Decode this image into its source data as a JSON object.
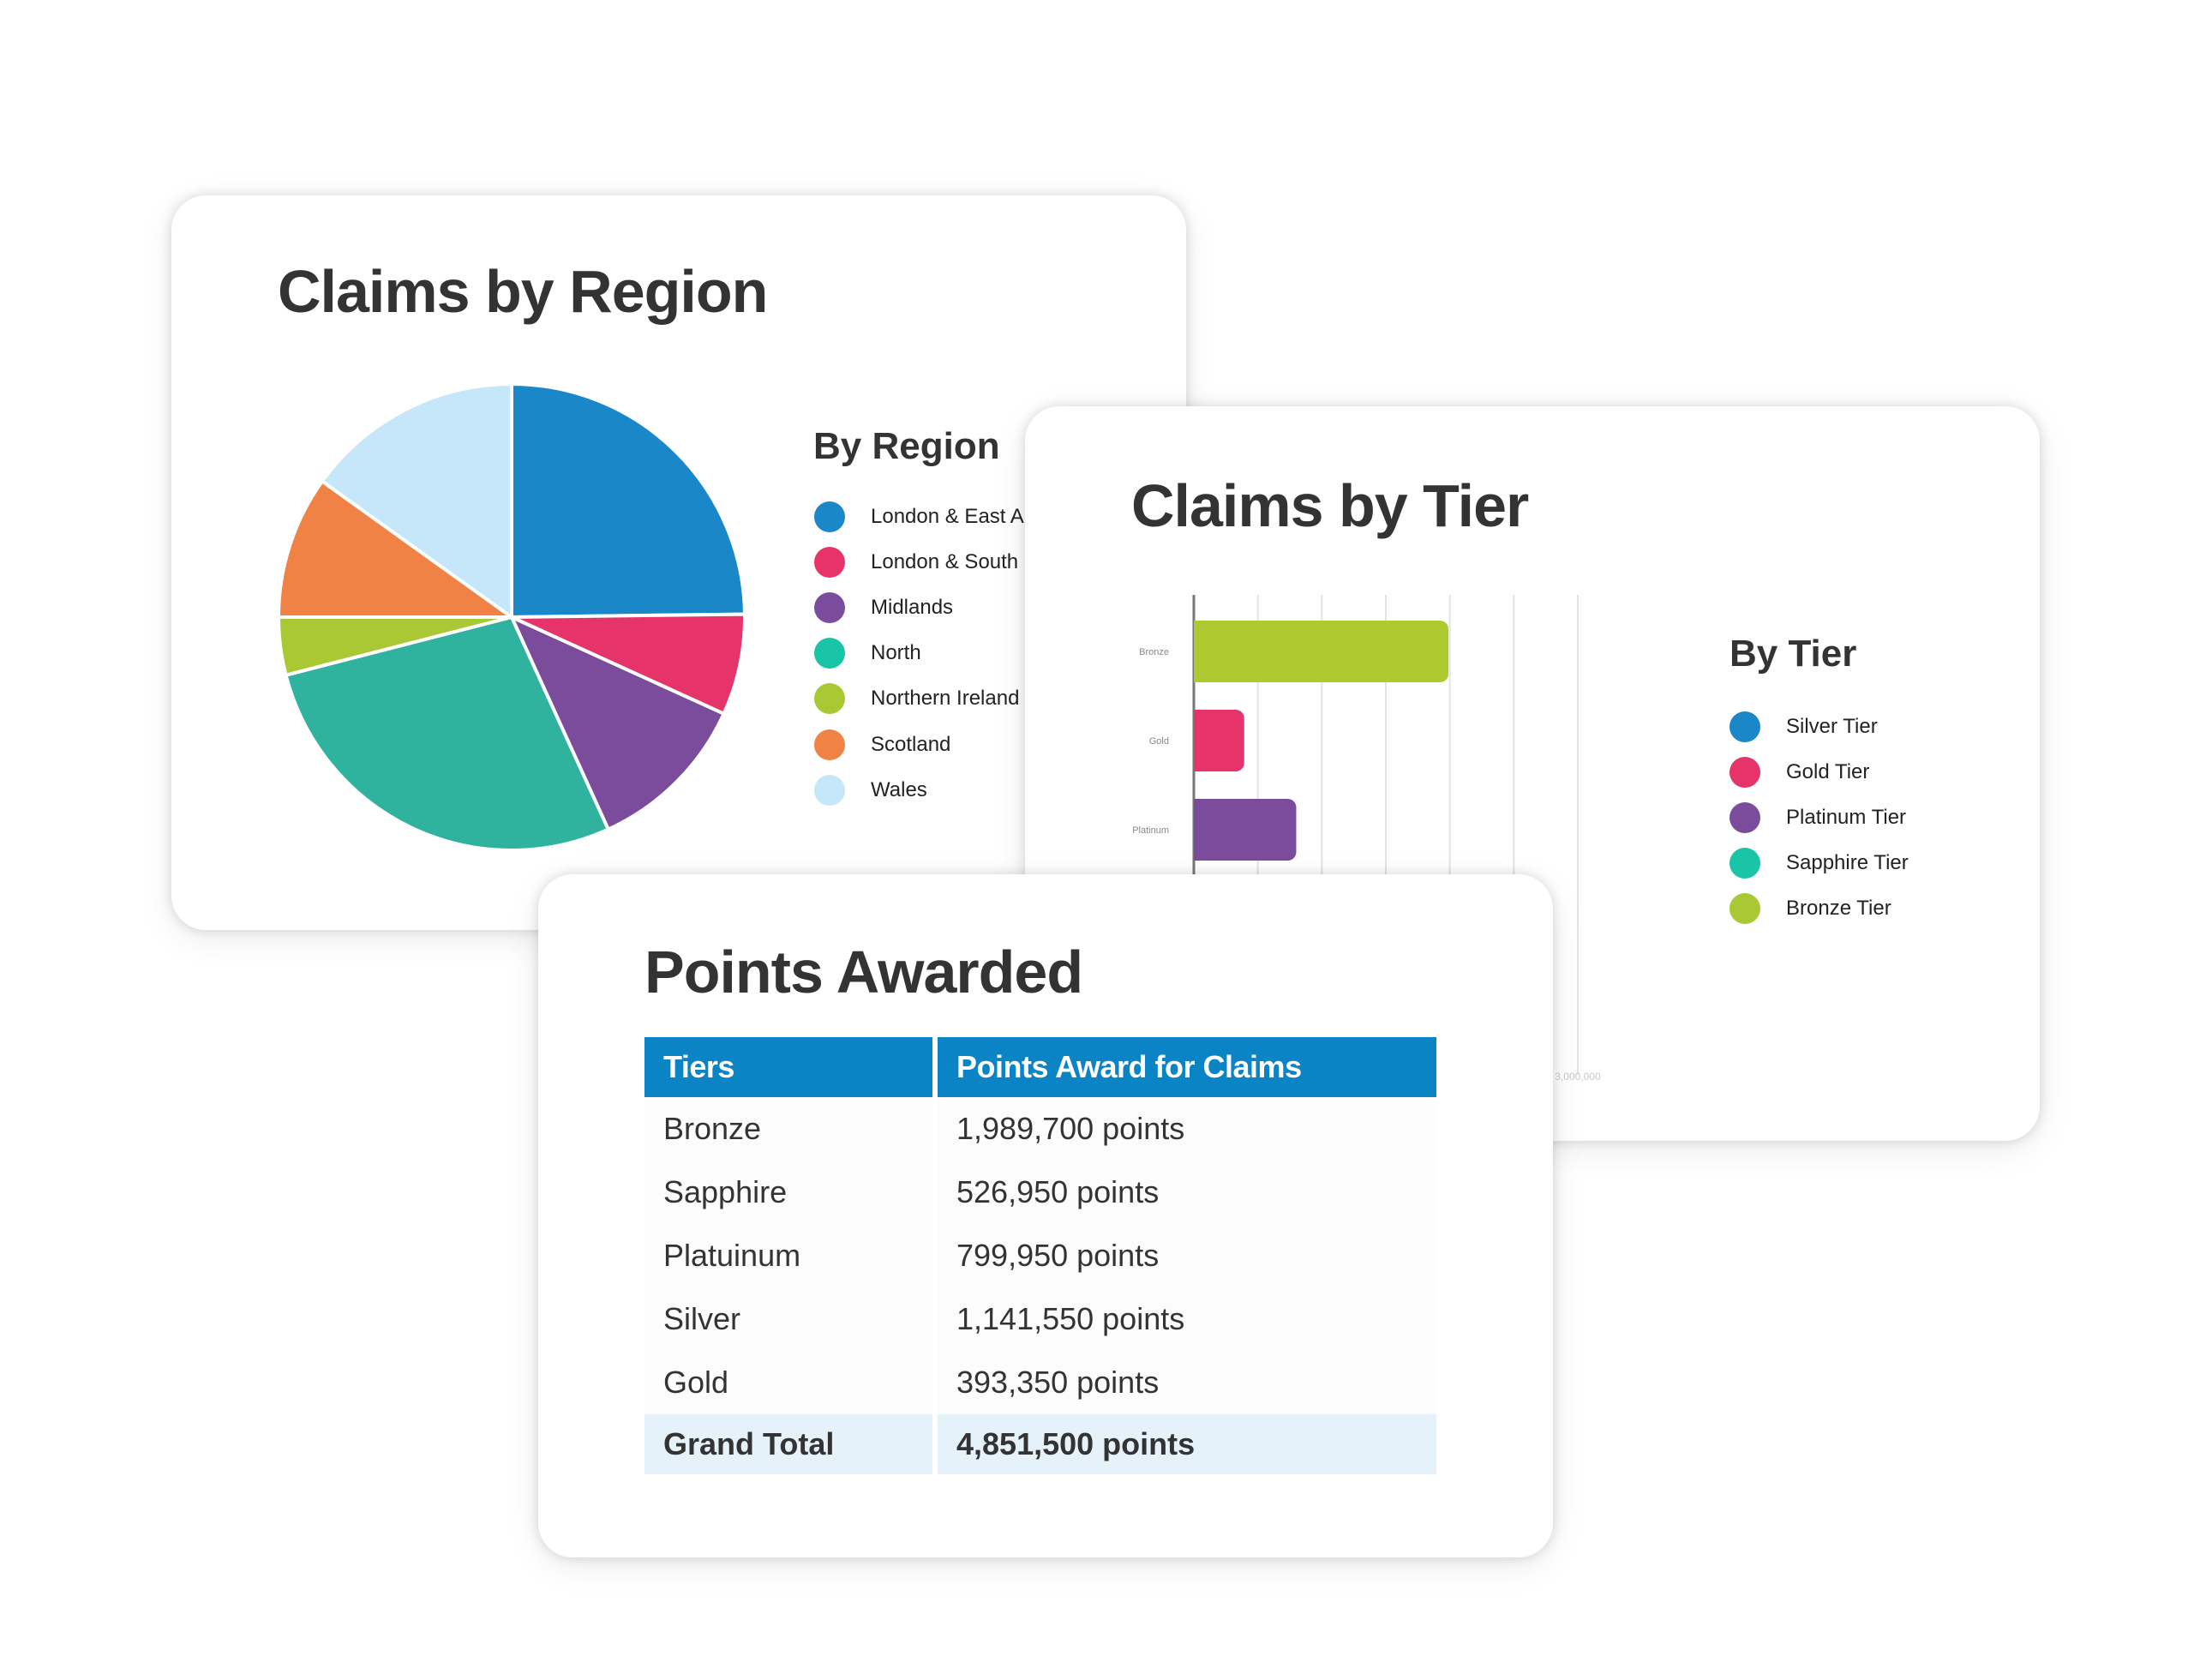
{
  "chart_data": [
    {
      "type": "pie",
      "title": "Claims by Region",
      "legend_title": "By Region",
      "legend_placement": "right",
      "slices": [
        {
          "label": "London & East A",
          "value": 24.8,
          "color": "#1a87c8"
        },
        {
          "label": "London & South",
          "value": 7.0,
          "color": "#e63369"
        },
        {
          "label": "Midlands",
          "value": 11.4,
          "color": "#7b4c9c"
        },
        {
          "label": "North",
          "value": 27.8,
          "color": "#2fb39e"
        },
        {
          "label": "Northern Ireland",
          "value": 4.0,
          "color": "#a9c833"
        },
        {
          "label": "Scotland",
          "value": 9.9,
          "color": "#f08245"
        },
        {
          "label": "Wales",
          "value": 15.1,
          "color": "#c5e7f9"
        }
      ],
      "legend_items": [
        {
          "label": "London & East A",
          "color": "#1a87c8"
        },
        {
          "label": "London & South",
          "color": "#e63369"
        },
        {
          "label": "Midlands",
          "color": "#7b4c9c"
        },
        {
          "label": "North",
          "color": "#19c4a7"
        },
        {
          "label": "Northern Ireland",
          "color": "#a9c833"
        },
        {
          "label": "Scotland",
          "color": "#f08245"
        },
        {
          "label": "Wales",
          "color": "#c5e7f9"
        }
      ]
    },
    {
      "type": "bar",
      "orientation": "horizontal",
      "title": "Claims by Tier",
      "legend_title": "By Tier",
      "legend_placement": "right",
      "categories": [
        "Bronze",
        "Gold",
        "Platinum"
      ],
      "values": [
        1989700,
        393350,
        799950
      ],
      "bar_colors": [
        "#adcb30",
        "#e63369",
        "#7b4c9c"
      ],
      "xlim": [
        0,
        3000000
      ],
      "x_tick_labels": [
        "3,000,000"
      ],
      "grid": true,
      "legend_items": [
        {
          "label": "Silver Tier",
          "color": "#1a87c8"
        },
        {
          "label": "Gold Tier",
          "color": "#e63369"
        },
        {
          "label": "Platinum Tier",
          "color": "#7b4c9c"
        },
        {
          "label": "Sapphire Tier",
          "color": "#19c4a7"
        },
        {
          "label": "Bronze Tier",
          "color": "#a9c833"
        }
      ]
    },
    {
      "type": "table",
      "title": "Points Awarded",
      "columns": [
        "Tiers",
        "Points Award for Claims"
      ],
      "rows": [
        [
          "Bronze",
          "1,989,700 points"
        ],
        [
          "Sapphire",
          "526,950 points"
        ],
        [
          "Platuinum",
          "799,950 points"
        ],
        [
          "Silver",
          "1,141,550 points"
        ],
        [
          "Gold",
          "393,350 points"
        ]
      ],
      "total": [
        "Grand Total",
        "4,851,500 points"
      ]
    }
  ]
}
